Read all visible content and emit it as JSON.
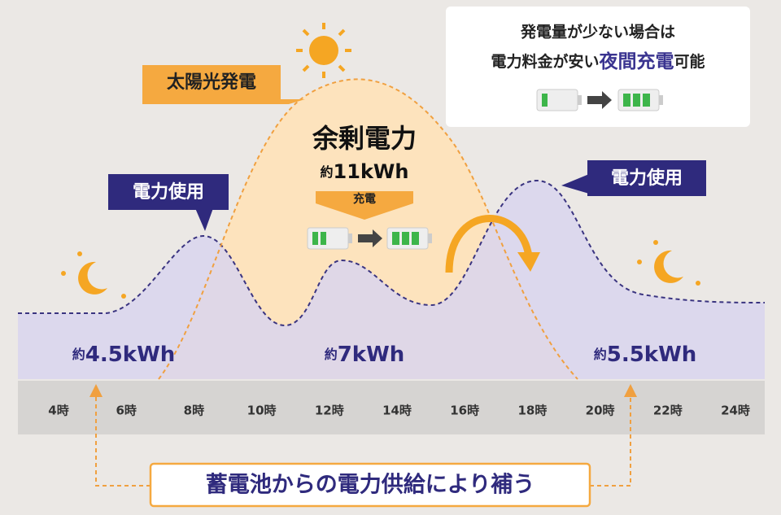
{
  "info_box": {
    "line1": "発電量が少ない場合は",
    "line2_start": "電力料金が安い",
    "line2_highlight": "夜間充電",
    "line2_end": "可能"
  },
  "solar_label": "太陽光発電",
  "surplus": {
    "title": "余剰電力",
    "prefix": "約",
    "amount": "11kWh",
    "charge": "充電"
  },
  "usage_labels": [
    "電力使用",
    "電力使用"
  ],
  "period_amounts": [
    {
      "prefix": "約",
      "amount": "4.5kWh"
    },
    {
      "prefix": "約",
      "amount": "7kWh"
    },
    {
      "prefix": "約",
      "amount": "5.5kWh"
    }
  ],
  "hours": [
    "4時",
    "6時",
    "8時",
    "10時",
    "12時",
    "14時",
    "16時",
    "18時",
    "20時",
    "22時",
    "24時"
  ],
  "footer": "蓄電池からの電力供給により補う"
}
